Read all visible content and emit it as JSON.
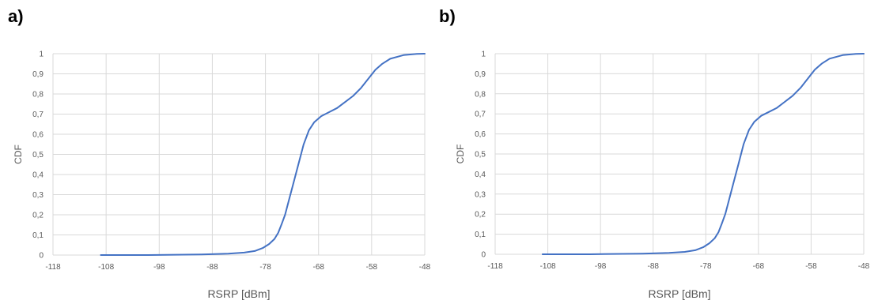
{
  "chart_data": [
    {
      "type": "line",
      "panel_label": "a)",
      "xlabel": "RSRP [dBm]",
      "ylabel": "CDF",
      "xlim": [
        -118,
        -48
      ],
      "ylim": [
        0,
        1
      ],
      "x_ticks": [
        "-118",
        "-108",
        "-98",
        "-88",
        "-78",
        "-68",
        "-58",
        "-48"
      ],
      "y_ticks": [
        "0",
        "0,1",
        "0,2",
        "0,3",
        "0,4",
        "0,5",
        "0,6",
        "0,7",
        "0,8",
        "0,9",
        "1"
      ],
      "grid": true,
      "colors": {
        "line": "#4472C4",
        "grid": "#d9d9d9"
      },
      "series": [
        {
          "x": [
            -109,
            -100,
            -90,
            -85,
            -82,
            -80,
            -78.5,
            -77.3,
            -76.3,
            -75.6,
            -75,
            -74.3,
            -73.6,
            -72.8,
            -71.8,
            -70.8,
            -69.8,
            -68.8,
            -67.5,
            -66,
            -64.5,
            -63,
            -61.5,
            -60,
            -58.5,
            -57.3,
            -56,
            -54.5,
            -52,
            -49.5,
            -48
          ],
          "y": [
            0,
            0,
            0.003,
            0.007,
            0.012,
            0.02,
            0.035,
            0.055,
            0.08,
            0.11,
            0.15,
            0.2,
            0.27,
            0.35,
            0.45,
            0.55,
            0.62,
            0.66,
            0.69,
            0.71,
            0.73,
            0.76,
            0.79,
            0.83,
            0.88,
            0.92,
            0.95,
            0.975,
            0.993,
            0.999,
            1
          ]
        }
      ]
    },
    {
      "type": "line",
      "panel_label": "b)",
      "xlabel": "RSRP [dBm]",
      "ylabel": "CDF",
      "xlim": [
        -118,
        -48
      ],
      "ylim": [
        0,
        1
      ],
      "x_ticks": [
        "-118",
        "-108",
        "-98",
        "-88",
        "-78",
        "-68",
        "-58",
        "-48"
      ],
      "y_ticks": [
        "0",
        "0,1",
        "0,2",
        "0,3",
        "0,4",
        "0,5",
        "0,6",
        "0,7",
        "0,8",
        "0,9",
        "1"
      ],
      "grid": true,
      "colors": {
        "line": "#4472C4",
        "grid": "#d9d9d9"
      },
      "series": [
        {
          "x": [
            -109,
            -100,
            -90,
            -85,
            -82,
            -80,
            -78.5,
            -77.3,
            -76.3,
            -75.6,
            -75,
            -74.3,
            -73.6,
            -72.8,
            -71.8,
            -70.8,
            -69.8,
            -68.8,
            -67.5,
            -66,
            -64.5,
            -63,
            -61.5,
            -60,
            -58.5,
            -57.3,
            -56,
            -54.5,
            -52,
            -49.5,
            -48
          ],
          "y": [
            0,
            0,
            0.003,
            0.007,
            0.012,
            0.02,
            0.035,
            0.055,
            0.08,
            0.11,
            0.15,
            0.2,
            0.27,
            0.35,
            0.45,
            0.55,
            0.62,
            0.66,
            0.69,
            0.71,
            0.73,
            0.76,
            0.79,
            0.83,
            0.88,
            0.92,
            0.95,
            0.975,
            0.993,
            0.999,
            1
          ]
        }
      ]
    }
  ]
}
